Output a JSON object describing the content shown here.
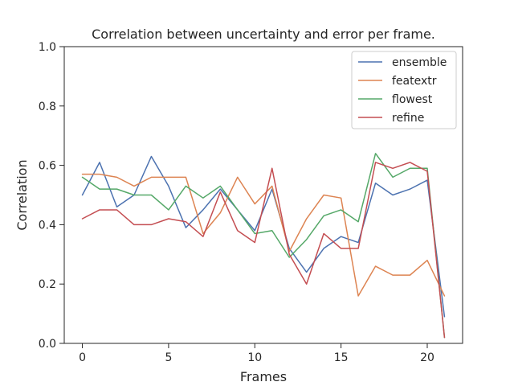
{
  "chart_data": {
    "type": "line",
    "title": "Correlation between uncertainty and error per frame.",
    "xlabel": "Frames",
    "ylabel": "Correlation",
    "xlim": [
      -1.05,
      22.05
    ],
    "ylim": [
      0.0,
      1.0
    ],
    "x_ticks": [
      0,
      5,
      10,
      15,
      20
    ],
    "y_ticks": [
      0.0,
      0.2,
      0.4,
      0.6,
      0.8,
      1.0
    ],
    "x_tick_labels": [
      "0",
      "5",
      "10",
      "15",
      "20"
    ],
    "y_tick_labels": [
      "0.0",
      "0.2",
      "0.4",
      "0.6",
      "0.8",
      "1.0"
    ],
    "grid": false,
    "legend_position": "top-right",
    "x": [
      0,
      1,
      2,
      3,
      4,
      5,
      6,
      7,
      8,
      9,
      10,
      11,
      12,
      13,
      14,
      15,
      16,
      17,
      18,
      19,
      20,
      21
    ],
    "series": [
      {
        "name": "ensemble",
        "color": "#4c72b0",
        "values": [
          0.5,
          0.61,
          0.46,
          0.5,
          0.63,
          0.53,
          0.39,
          0.45,
          0.52,
          0.45,
          0.38,
          0.52,
          0.32,
          0.24,
          0.32,
          0.36,
          0.34,
          0.54,
          0.5,
          0.52,
          0.55,
          0.09
        ]
      },
      {
        "name": "featextr",
        "color": "#dd8452",
        "values": [
          0.57,
          0.57,
          0.56,
          0.53,
          0.56,
          0.56,
          0.56,
          0.37,
          0.44,
          0.56,
          0.47,
          0.53,
          0.31,
          0.42,
          0.5,
          0.49,
          0.16,
          0.26,
          0.23,
          0.23,
          0.28,
          0.16
        ]
      },
      {
        "name": "flowest",
        "color": "#55a868",
        "values": [
          0.56,
          0.52,
          0.52,
          0.5,
          0.5,
          0.45,
          0.53,
          0.49,
          0.53,
          0.45,
          0.37,
          0.38,
          0.29,
          0.35,
          0.43,
          0.45,
          0.41,
          0.64,
          0.56,
          0.59,
          0.59,
          0.02
        ]
      },
      {
        "name": "refine",
        "color": "#c44e52",
        "values": [
          0.42,
          0.45,
          0.45,
          0.4,
          0.4,
          0.42,
          0.41,
          0.36,
          0.51,
          0.38,
          0.34,
          0.59,
          0.3,
          0.2,
          0.37,
          0.32,
          0.32,
          0.61,
          0.59,
          0.61,
          0.58,
          0.02
        ]
      }
    ]
  }
}
